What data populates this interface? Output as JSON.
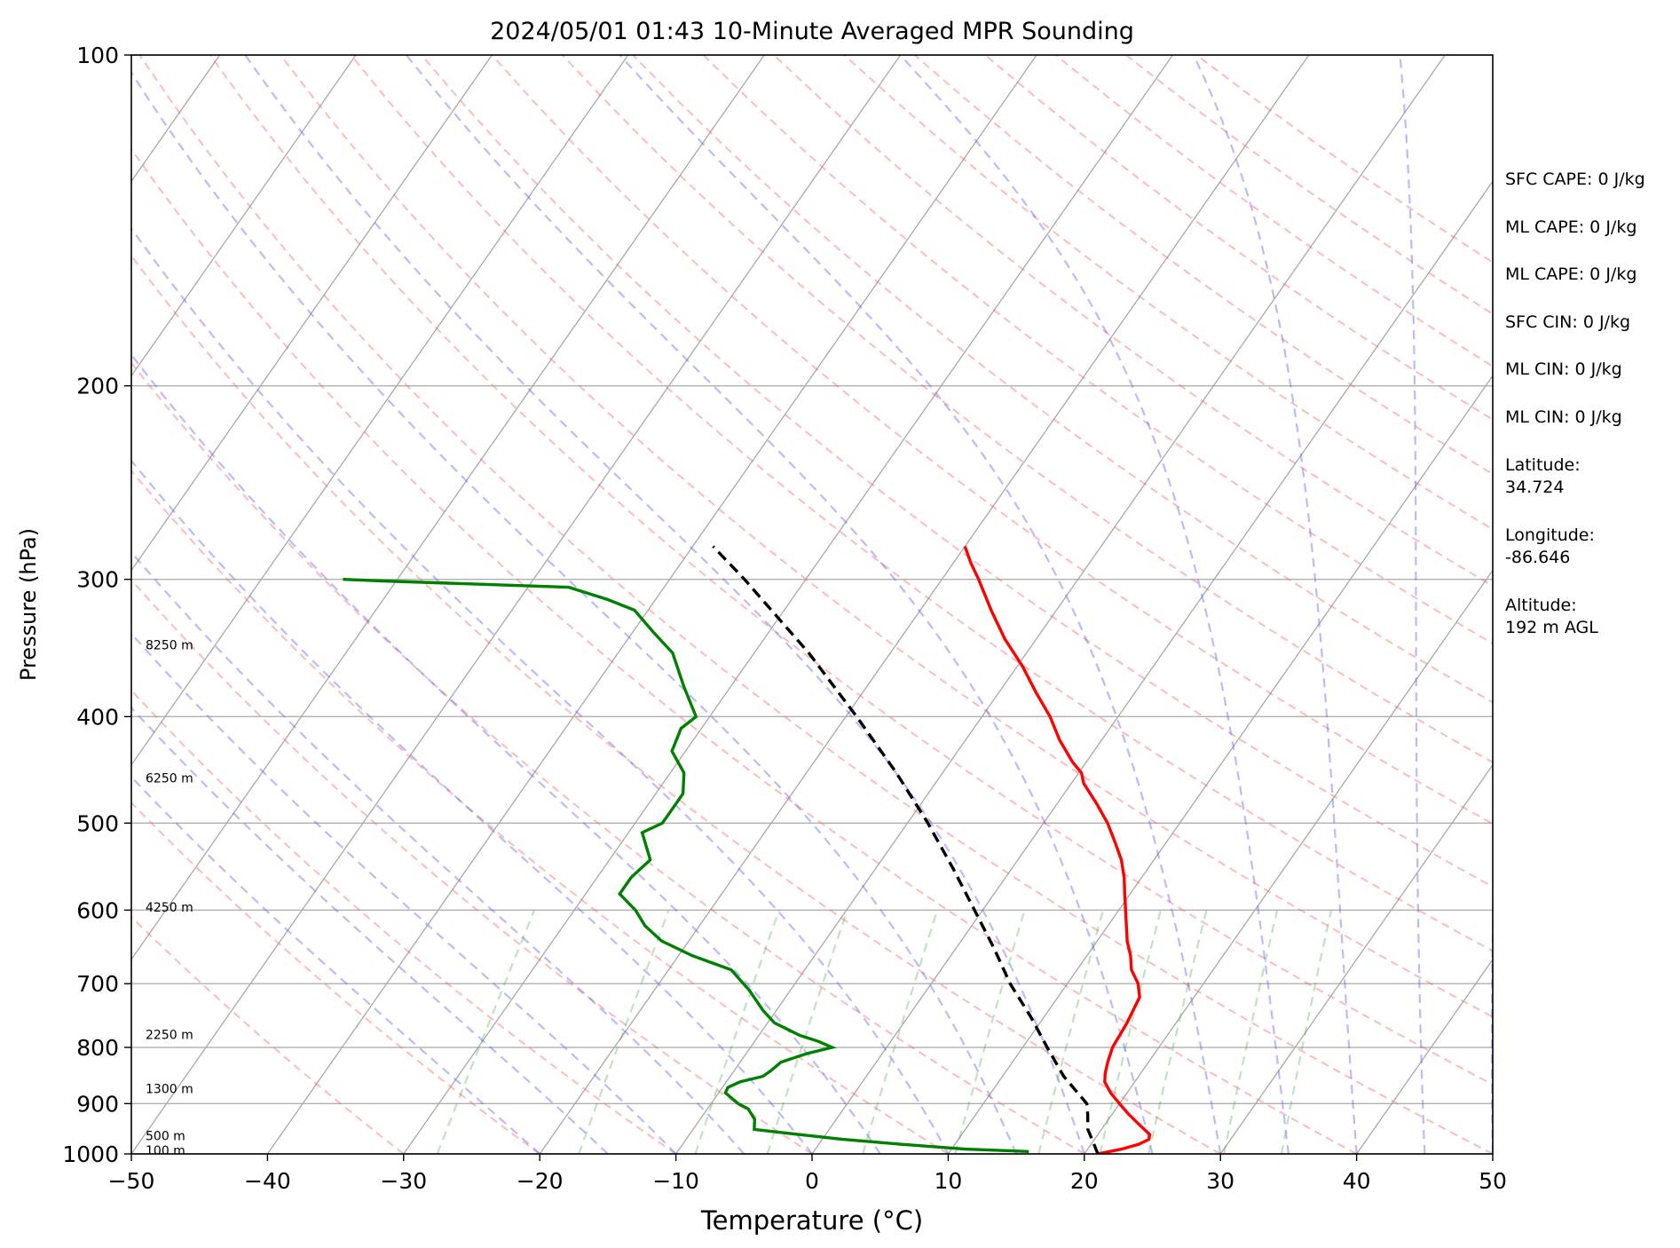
{
  "chart_data": {
    "type": "line",
    "title": "2024/05/01 01:43 10-Minute Averaged MPR Sounding",
    "xlabel": "Temperature (°C)",
    "ylabel": "Pressure (hPa)",
    "xlim": [
      -50,
      50
    ],
    "ylim": [
      1000,
      100
    ],
    "y_scale": "log",
    "skew": "skew-T",
    "grid": true,
    "x_ticks": [
      "−50",
      "−40",
      "−30",
      "−20",
      "−10",
      "0",
      "10",
      "20",
      "30",
      "40",
      "50"
    ],
    "x_tick_values": [
      -50,
      -40,
      -30,
      -20,
      -10,
      0,
      10,
      20,
      30,
      40,
      50
    ],
    "y_ticks": [
      "100",
      "200",
      "300",
      "400",
      "500",
      "600",
      "700",
      "800",
      "900",
      "1000"
    ],
    "y_tick_values": [
      100,
      200,
      300,
      400,
      500,
      600,
      700,
      800,
      900,
      1000
    ],
    "series": [
      {
        "color": "#ff0000",
        "style": "solid",
        "points": [
          [
            1000,
            21.0
          ],
          [
            990,
            22.5
          ],
          [
            980,
            23.5
          ],
          [
            970,
            24.0
          ],
          [
            960,
            23.8
          ],
          [
            940,
            22.5
          ],
          [
            920,
            21.2
          ],
          [
            900,
            20.0
          ],
          [
            880,
            18.8
          ],
          [
            860,
            17.8
          ],
          [
            845,
            17.4
          ],
          [
            825,
            17.0
          ],
          [
            800,
            16.6
          ],
          [
            760,
            16.4
          ],
          [
            720,
            16.0
          ],
          [
            700,
            15.2
          ],
          [
            680,
            14.0
          ],
          [
            660,
            13.2
          ],
          [
            640,
            12.2
          ],
          [
            600,
            10.5
          ],
          [
            580,
            9.6
          ],
          [
            560,
            8.7
          ],
          [
            540,
            7.6
          ],
          [
            520,
            6.2
          ],
          [
            500,
            4.7
          ],
          [
            480,
            2.9
          ],
          [
            460,
            0.9
          ],
          [
            450,
            0.2
          ],
          [
            440,
            -1.0
          ],
          [
            420,
            -3.1
          ],
          [
            400,
            -5.0
          ],
          [
            380,
            -7.3
          ],
          [
            360,
            -9.6
          ],
          [
            340,
            -12.3
          ],
          [
            320,
            -14.8
          ],
          [
            300,
            -17.3
          ],
          [
            290,
            -18.7
          ],
          [
            280,
            -20.0
          ]
        ]
      },
      {
        "color": "#000000",
        "style": "dashed",
        "points": [
          [
            1000,
            21.0
          ],
          [
            950,
            19.0
          ],
          [
            920,
            18.2
          ],
          [
            900,
            17.6
          ],
          [
            850,
            14.5
          ],
          [
            800,
            11.8
          ],
          [
            750,
            9.0
          ],
          [
            700,
            5.8
          ],
          [
            650,
            2.8
          ],
          [
            600,
            -0.6
          ],
          [
            550,
            -4.3
          ],
          [
            500,
            -8.5
          ],
          [
            450,
            -13.4
          ],
          [
            400,
            -19.2
          ],
          [
            350,
            -26.0
          ],
          [
            300,
            -34.5
          ],
          [
            280,
            -38.5
          ]
        ]
      },
      {
        "color": "#008000",
        "style": "solid",
        "points": [
          [
            995,
            15.8
          ],
          [
            990,
            11.0
          ],
          [
            980,
            6.0
          ],
          [
            970,
            1.5
          ],
          [
            960,
            -2.0
          ],
          [
            950,
            -5.5
          ],
          [
            930,
            -6.0
          ],
          [
            910,
            -7.0
          ],
          [
            900,
            -8.0
          ],
          [
            880,
            -9.5
          ],
          [
            870,
            -9.6
          ],
          [
            860,
            -9.0
          ],
          [
            850,
            -7.6
          ],
          [
            840,
            -7.3
          ],
          [
            825,
            -7.0
          ],
          [
            810,
            -5.5
          ],
          [
            800,
            -4.0
          ],
          [
            790,
            -5.3
          ],
          [
            780,
            -7.0
          ],
          [
            760,
            -9.5
          ],
          [
            740,
            -11.0
          ],
          [
            710,
            -13.0
          ],
          [
            680,
            -15.4
          ],
          [
            660,
            -19.0
          ],
          [
            640,
            -22.0
          ],
          [
            620,
            -24.0
          ],
          [
            600,
            -25.5
          ],
          [
            580,
            -27.5
          ],
          [
            560,
            -27.5
          ],
          [
            540,
            -27.0
          ],
          [
            510,
            -29.0
          ],
          [
            500,
            -28.0
          ],
          [
            470,
            -28.0
          ],
          [
            450,
            -29.0
          ],
          [
            430,
            -31.0
          ],
          [
            410,
            -31.5
          ],
          [
            400,
            -31.0
          ],
          [
            375,
            -33.5
          ],
          [
            350,
            -36.0
          ],
          [
            335,
            -38.5
          ],
          [
            320,
            -41.0
          ],
          [
            313,
            -43.5
          ],
          [
            305,
            -47.0
          ],
          [
            301,
            -61.0
          ],
          [
            300,
            -64.0
          ]
        ]
      }
    ],
    "height_labels": [
      "8250 m",
      "6250 m",
      "4250 m",
      "2250 m",
      "1300 m",
      "500 m",
      "100 m"
    ],
    "height_label_pressures": [
      344,
      455,
      596,
      779,
      872,
      963,
      993
    ],
    "reference_lines": [
      {
        "kind": "dry adiabats",
        "color": "#ff8080",
        "style": "dashed"
      },
      {
        "kind": "moist adiabats",
        "color": "#8080ff",
        "style": "dashed"
      },
      {
        "kind": "mixing ratio lines",
        "color": "#6ab46a",
        "style": "dashed"
      },
      {
        "kind": "isotherms",
        "color": "#808080",
        "style": "solid"
      }
    ]
  },
  "stats": [
    "SFC CAPE: 0 J/kg",
    "ML CAPE: 0 J/kg",
    "ML CAPE: 0 J/kg",
    "SFC CIN: 0 J/kg",
    "ML CIN: 0 J/kg",
    "ML CIN: 0 J/kg"
  ],
  "location": {
    "latitude_label": "Latitude:",
    "latitude": "34.724",
    "longitude_label": "Longitude:",
    "longitude": "-86.646",
    "altitude_label": "Altitude:",
    "altitude": "192 m AGL"
  }
}
